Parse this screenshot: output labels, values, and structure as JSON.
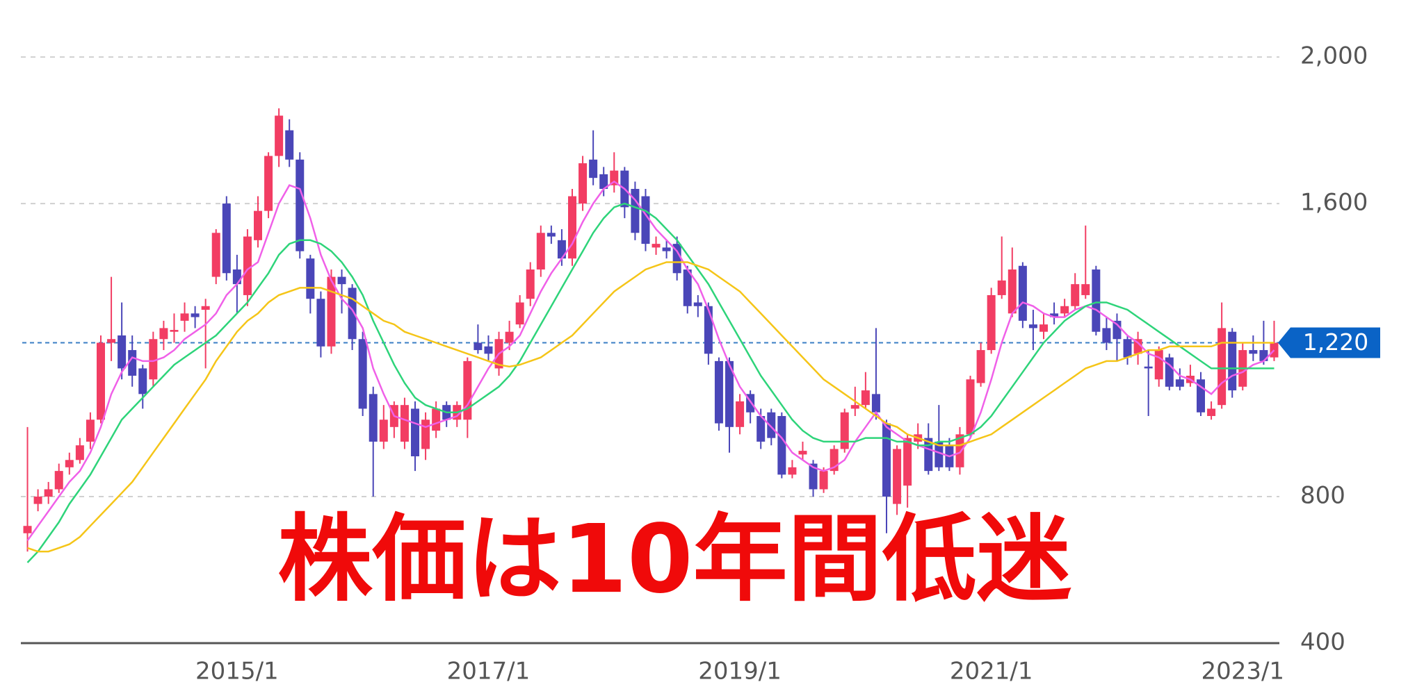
{
  "chart_data": {
    "type": "candlestick",
    "categories": [
      null,
      null,
      null,
      null,
      null,
      null,
      null,
      null,
      null,
      null,
      null,
      null,
      null,
      null,
      null,
      null,
      null,
      null,
      null,
      null,
      "2015/1",
      null,
      null,
      null,
      null,
      null,
      null,
      null,
      null,
      null,
      null,
      null,
      null,
      null,
      null,
      null,
      null,
      null,
      null,
      null,
      null,
      null,
      null,
      null,
      "2017/1",
      null,
      null,
      null,
      null,
      null,
      null,
      null,
      null,
      null,
      null,
      null,
      null,
      null,
      null,
      null,
      null,
      null,
      null,
      null,
      null,
      null,
      null,
      null,
      "2019/1",
      null,
      null,
      null,
      null,
      null,
      null,
      null,
      null,
      null,
      null,
      null,
      null,
      null,
      null,
      null,
      null,
      null,
      null,
      null,
      null,
      null,
      null,
      null,
      "2021/1",
      null,
      null,
      null,
      null,
      null,
      null,
      null,
      null,
      null,
      null,
      null,
      null,
      null,
      null,
      null,
      null,
      null,
      null,
      null,
      null,
      null,
      null,
      null,
      "2023/1",
      null,
      null,
      null
    ],
    "open": [
      700,
      780,
      800,
      820,
      880,
      900,
      950,
      1010,
      1220,
      1240,
      1200,
      1150,
      1120,
      1230,
      1250,
      1280,
      1300,
      1310,
      1400,
      1600,
      1420,
      1350,
      1500,
      1580,
      1730,
      1800,
      1720,
      1450,
      1340,
      1210,
      1400,
      1370,
      1230,
      1080,
      950,
      990,
      950,
      1040,
      930,
      980,
      1050,
      1010,
      1010,
      1220,
      1210,
      1150,
      1220,
      1270,
      1340,
      1420,
      1520,
      1500,
      1450,
      1600,
      1720,
      1680,
      1650,
      1690,
      1640,
      1620,
      1480,
      1480,
      1490,
      1420,
      1330,
      1320,
      1170,
      1170,
      990,
      1080,
      1020,
      1030,
      1020,
      860,
      915,
      890,
      820,
      870,
      930,
      1040,
      1050,
      1080,
      1000,
      780,
      830,
      950,
      960,
      950,
      940,
      880,
      970,
      1110,
      1200,
      1350,
      1300,
      1430,
      1270,
      1250,
      1300,
      1300,
      1320,
      1350,
      1420,
      1260,
      1280,
      1230,
      1190,
      1155,
      1120,
      1180,
      1120,
      1110,
      1120,
      1020,
      1050,
      1250,
      1100,
      1200,
      1200,
      1180
    ],
    "high": [
      990,
      820,
      840,
      890,
      920,
      960,
      1030,
      1240,
      1400,
      1330,
      1240,
      1160,
      1250,
      1280,
      1300,
      1330,
      1320,
      1340,
      1530,
      1620,
      1460,
      1530,
      1620,
      1740,
      1860,
      1830,
      1740,
      1460,
      1360,
      1420,
      1420,
      1380,
      1250,
      1100,
      1050,
      1060,
      1070,
      1060,
      1030,
      1060,
      1060,
      1060,
      1180,
      1270,
      1240,
      1250,
      1280,
      1350,
      1440,
      1540,
      1540,
      1530,
      1640,
      1730,
      1800,
      1700,
      1740,
      1700,
      1660,
      1640,
      1510,
      1500,
      1510,
      1430,
      1350,
      1330,
      1180,
      1180,
      1080,
      1090,
      1040,
      1040,
      1030,
      900,
      950,
      900,
      880,
      940,
      1040,
      1100,
      1140,
      1260,
      1010,
      940,
      970,
      1000,
      1000,
      1050,
      960,
      990,
      1130,
      1220,
      1370,
      1510,
      1480,
      1440,
      1310,
      1300,
      1330,
      1340,
      1410,
      1540,
      1430,
      1290,
      1300,
      1240,
      1250,
      1200,
      1210,
      1190,
      1150,
      1160,
      1140,
      1060,
      1330,
      1260,
      1220,
      1240,
      1280,
      1280
    ],
    "low": [
      650,
      760,
      780,
      810,
      860,
      890,
      930,
      1000,
      1170,
      1120,
      1100,
      1040,
      1100,
      1200,
      1220,
      1250,
      1260,
      1150,
      1380,
      1390,
      1300,
      1320,
      1480,
      1560,
      1700,
      1700,
      1450,
      1300,
      1180,
      1190,
      1300,
      1200,
      1020,
      800,
      930,
      960,
      930,
      870,
      900,
      960,
      990,
      990,
      960,
      1190,
      1170,
      1130,
      1200,
      1260,
      1320,
      1400,
      1490,
      1430,
      1430,
      1580,
      1650,
      1620,
      1630,
      1560,
      1500,
      1470,
      1460,
      1450,
      1390,
      1300,
      1290,
      1160,
      980,
      920,
      970,
      1000,
      930,
      940,
      850,
      850,
      900,
      800,
      810,
      860,
      920,
      1020,
      1040,
      1010,
      700,
      750,
      770,
      930,
      860,
      870,
      870,
      860,
      960,
      1100,
      1190,
      1340,
      1290,
      1260,
      1200,
      1230,
      1270,
      1290,
      1310,
      1340,
      1240,
      1200,
      1170,
      1160,
      1160,
      1020,
      1100,
      1090,
      1090,
      1100,
      1020,
      1010,
      1040,
      1070,
      1090,
      1170,
      1160,
      1170
    ],
    "close": [
      720,
      800,
      820,
      870,
      900,
      940,
      1010,
      1220,
      1230,
      1150,
      1130,
      1080,
      1230,
      1260,
      1255,
      1300,
      1290,
      1320,
      1520,
      1410,
      1380,
      1510,
      1580,
      1730,
      1840,
      1720,
      1470,
      1340,
      1210,
      1400,
      1380,
      1230,
      1040,
      950,
      1010,
      1050,
      1050,
      910,
      1010,
      1040,
      1010,
      1050,
      1170,
      1200,
      1190,
      1230,
      1250,
      1330,
      1420,
      1520,
      1510,
      1450,
      1620,
      1710,
      1670,
      1640,
      1690,
      1590,
      1520,
      1490,
      1490,
      1470,
      1410,
      1320,
      1320,
      1190,
      1000,
      990,
      1060,
      1030,
      950,
      960,
      860,
      880,
      925,
      820,
      870,
      930,
      1030,
      1050,
      1090,
      1030,
      800,
      930,
      960,
      970,
      870,
      880,
      880,
      970,
      1120,
      1200,
      1350,
      1390,
      1420,
      1280,
      1260,
      1270,
      1290,
      1320,
      1380,
      1380,
      1250,
      1220,
      1230,
      1180,
      1230,
      1150,
      1200,
      1100,
      1100,
      1130,
      1030,
      1040,
      1260,
      1090,
      1200,
      1190,
      1170,
      1220
    ],
    "up_color": "#f23d63",
    "down_color": "#4a46b8",
    "lines": [
      {
        "color": "#f060e8",
        "values": [
          680,
          720,
          760,
          800,
          840,
          870,
          920,
          990,
          1080,
          1140,
          1180,
          1170,
          1170,
          1180,
          1200,
          1230,
          1250,
          1270,
          1300,
          1350,
          1380,
          1420,
          1440,
          1520,
          1600,
          1650,
          1640,
          1560,
          1460,
          1390,
          1340,
          1310,
          1260,
          1150,
          1080,
          1020,
          1010,
          1000,
          990,
          1000,
          1010,
          1020,
          1050,
          1100,
          1150,
          1190,
          1210,
          1240,
          1300,
          1360,
          1410,
          1450,
          1490,
          1550,
          1600,
          1640,
          1660,
          1640,
          1610,
          1570,
          1530,
          1500,
          1470,
          1420,
          1380,
          1310,
          1230,
          1160,
          1100,
          1060,
          1020,
          990,
          960,
          920,
          900,
          880,
          870,
          880,
          900,
          950,
          990,
          1030,
          990,
          970,
          950,
          940,
          930,
          920,
          910,
          920,
          960,
          1030,
          1120,
          1220,
          1300,
          1330,
          1320,
          1300,
          1290,
          1290,
          1310,
          1320,
          1310,
          1290,
          1270,
          1240,
          1220,
          1190,
          1180,
          1160,
          1130,
          1120,
          1100,
          1080,
          1110,
          1130,
          1140,
          1160,
          1170,
          1200
        ]
      },
      {
        "color": "#2ed47a",
        "values": [
          620,
          650,
          690,
          730,
          780,
          820,
          860,
          910,
          960,
          1010,
          1040,
          1070,
          1100,
          1130,
          1160,
          1180,
          1200,
          1220,
          1240,
          1270,
          1300,
          1330,
          1370,
          1410,
          1460,
          1490,
          1500,
          1500,
          1490,
          1470,
          1440,
          1400,
          1350,
          1280,
          1220,
          1160,
          1110,
          1070,
          1050,
          1040,
          1030,
          1030,
          1040,
          1060,
          1080,
          1100,
          1130,
          1170,
          1220,
          1270,
          1320,
          1370,
          1420,
          1470,
          1520,
          1560,
          1590,
          1600,
          1590,
          1580,
          1560,
          1530,
          1500,
          1460,
          1420,
          1380,
          1330,
          1280,
          1230,
          1180,
          1130,
          1090,
          1050,
          1010,
          980,
          960,
          950,
          950,
          950,
          950,
          960,
          960,
          960,
          950,
          950,
          940,
          940,
          950,
          950,
          960,
          970,
          990,
          1020,
          1060,
          1100,
          1140,
          1180,
          1220,
          1250,
          1280,
          1300,
          1320,
          1330,
          1330,
          1320,
          1310,
          1290,
          1270,
          1250,
          1230,
          1210,
          1190,
          1170,
          1150,
          1150,
          1150,
          1150,
          1150,
          1150,
          1150
        ]
      },
      {
        "color": "#f5c518",
        "values": [
          660,
          650,
          650,
          660,
          670,
          690,
          720,
          750,
          780,
          810,
          840,
          880,
          920,
          960,
          1000,
          1040,
          1080,
          1120,
          1170,
          1210,
          1250,
          1280,
          1300,
          1330,
          1350,
          1360,
          1370,
          1370,
          1370,
          1360,
          1350,
          1340,
          1320,
          1300,
          1280,
          1270,
          1250,
          1240,
          1230,
          1220,
          1210,
          1200,
          1190,
          1180,
          1170,
          1160,
          1155,
          1160,
          1170,
          1180,
          1200,
          1220,
          1240,
          1270,
          1300,
          1330,
          1360,
          1380,
          1400,
          1420,
          1430,
          1440,
          1440,
          1440,
          1430,
          1420,
          1400,
          1380,
          1360,
          1330,
          1300,
          1270,
          1240,
          1210,
          1180,
          1150,
          1120,
          1100,
          1080,
          1060,
          1040,
          1020,
          1000,
          990,
          970,
          960,
          950,
          940,
          940,
          940,
          950,
          960,
          970,
          990,
          1010,
          1030,
          1050,
          1070,
          1090,
          1110,
          1130,
          1150,
          1160,
          1170,
          1170,
          1180,
          1190,
          1200,
          1200,
          1210,
          1210,
          1210,
          1210,
          1210,
          1220,
          1220,
          1220,
          1220,
          1220,
          1220
        ]
      }
    ],
    "ylim": [
      400,
      2150
    ],
    "yticks": [
      400,
      800,
      {
        "value": 1600,
        "label": "1,600"
      },
      {
        "value": 2000,
        "label": "2,000"
      }
    ],
    "last_price": {
      "value": 1220,
      "label": "1,220"
    },
    "annotation": "株価は10年間低迷"
  }
}
